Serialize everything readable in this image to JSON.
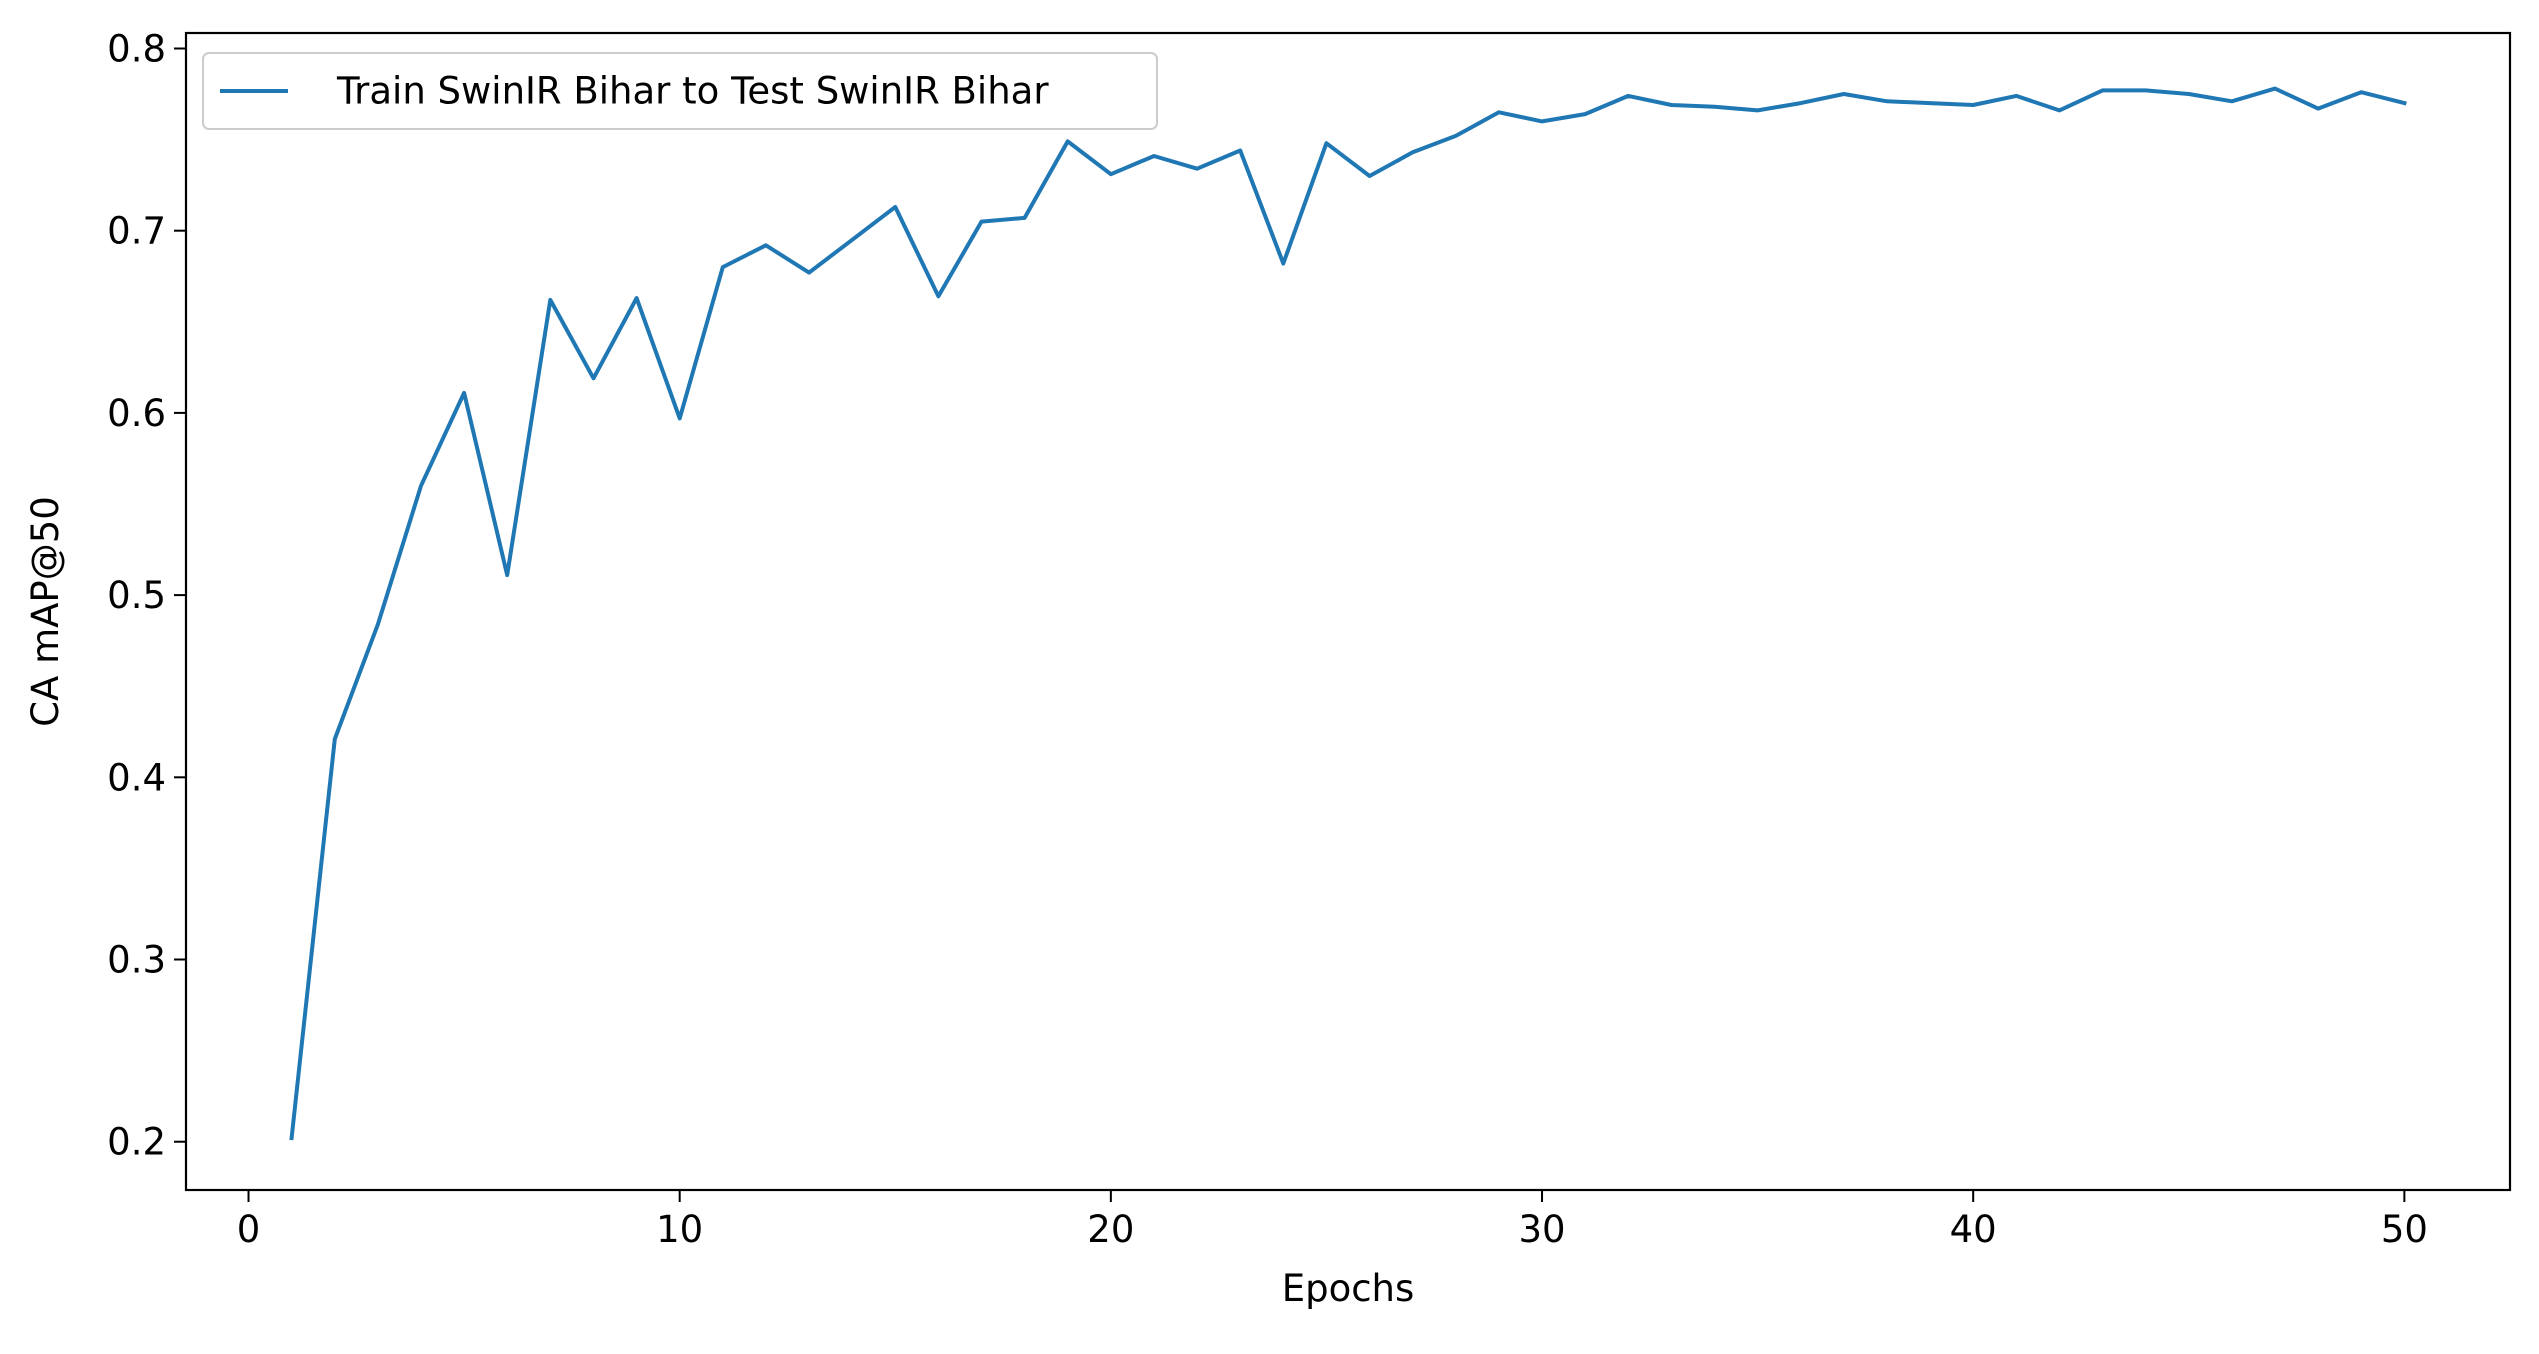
{
  "chart_data": {
    "type": "line",
    "title": "",
    "xlabel": "Epochs",
    "ylabel": "CA mAP@50",
    "xlim": [
      -1.45,
      52.45
    ],
    "ylim": [
      0.1735,
      0.8085
    ],
    "xticks": [
      0,
      10,
      20,
      30,
      40,
      50
    ],
    "yticks": [
      0.2,
      0.3,
      0.4,
      0.5,
      0.6,
      0.7,
      0.8
    ],
    "grid": false,
    "legend_position": "top-left",
    "series": [
      {
        "name": "Train SwinIR Bihar to Test SwinIR Bihar",
        "color": "#1f77b4",
        "x": [
          1,
          2,
          3,
          4,
          5,
          6,
          7,
          8,
          9,
          10,
          11,
          12,
          13,
          14,
          15,
          16,
          17,
          18,
          19,
          20,
          21,
          22,
          23,
          24,
          25,
          26,
          27,
          28,
          29,
          30,
          31,
          32,
          33,
          34,
          35,
          36,
          37,
          38,
          39,
          40,
          41,
          42,
          43,
          44,
          45,
          46,
          47,
          48,
          49,
          50
        ],
        "y": [
          0.202,
          0.421,
          0.484,
          0.56,
          0.611,
          0.511,
          0.662,
          0.619,
          0.663,
          0.597,
          0.68,
          0.692,
          0.677,
          0.695,
          0.713,
          0.664,
          0.705,
          0.707,
          0.749,
          0.731,
          0.741,
          0.734,
          0.744,
          0.682,
          0.748,
          0.73,
          0.743,
          0.752,
          0.765,
          0.76,
          0.764,
          0.774,
          0.769,
          0.768,
          0.766,
          0.77,
          0.775,
          0.771,
          0.77,
          0.769,
          0.774,
          0.766,
          0.777,
          0.777,
          0.775,
          0.771,
          0.778,
          0.767,
          0.776,
          0.77
        ]
      }
    ]
  }
}
